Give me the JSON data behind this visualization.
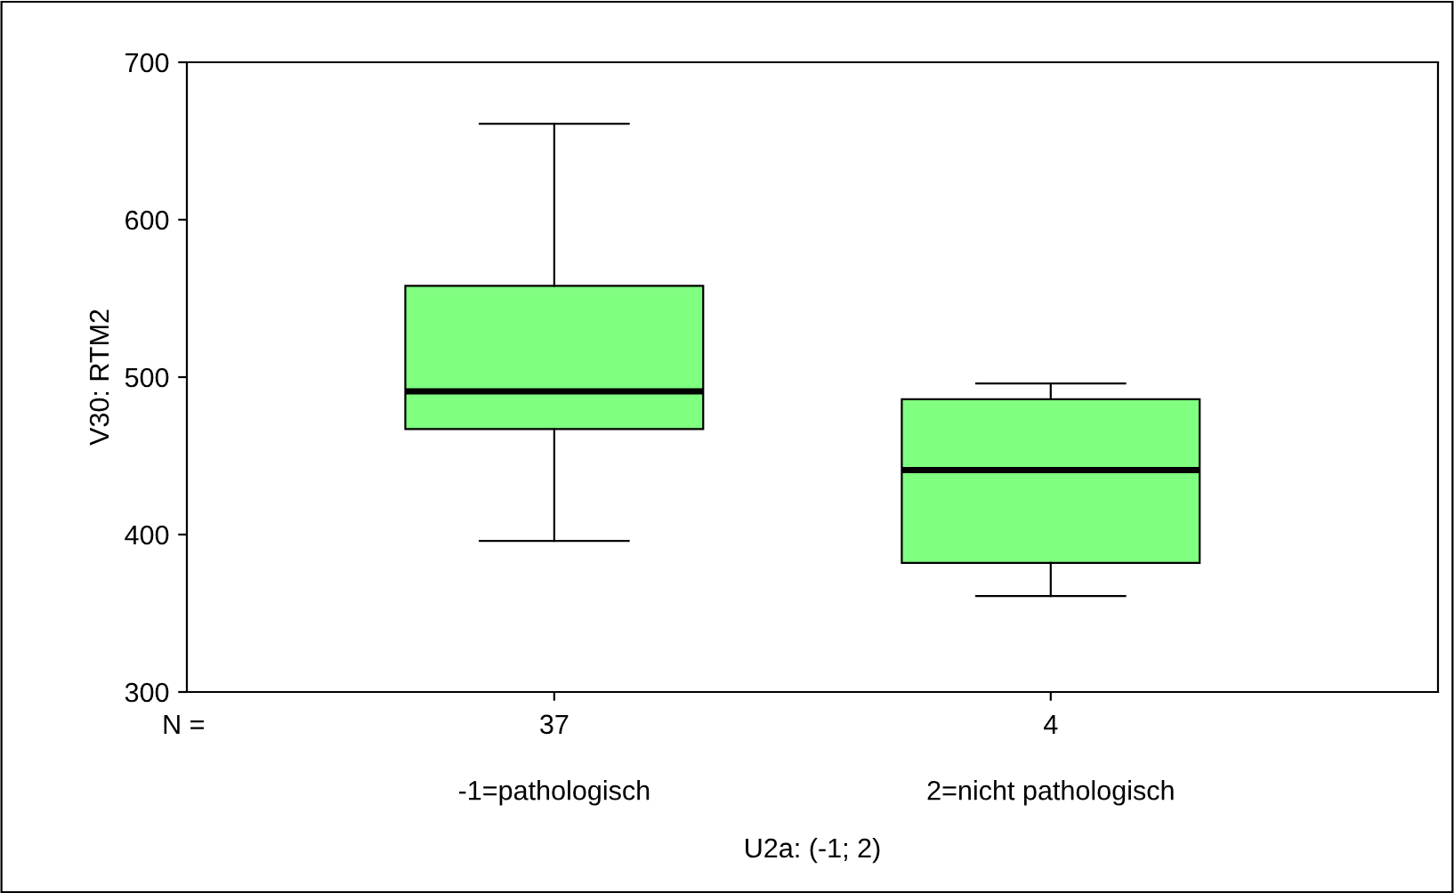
{
  "chart_data": {
    "type": "box",
    "xlabel": "U2a: (-1; 2)",
    "ylabel": "V30: RTM2",
    "categories": [
      "-1=pathologisch",
      "2=nicht pathologisch"
    ],
    "series": [
      {
        "color": "#80ff80",
        "boxes": [
          {
            "low": 396,
            "q1": 467,
            "median": 491,
            "q3": 558,
            "high": 661
          },
          {
            "low": 361,
            "q1": 382,
            "median": 441,
            "q3": 486,
            "high": 496
          }
        ]
      }
    ],
    "ylim": [
      300,
      700
    ],
    "yticks": [
      300,
      400,
      500,
      600,
      700
    ],
    "grid": false,
    "legend": false,
    "annotations": [
      "N =",
      "37",
      "4"
    ]
  }
}
